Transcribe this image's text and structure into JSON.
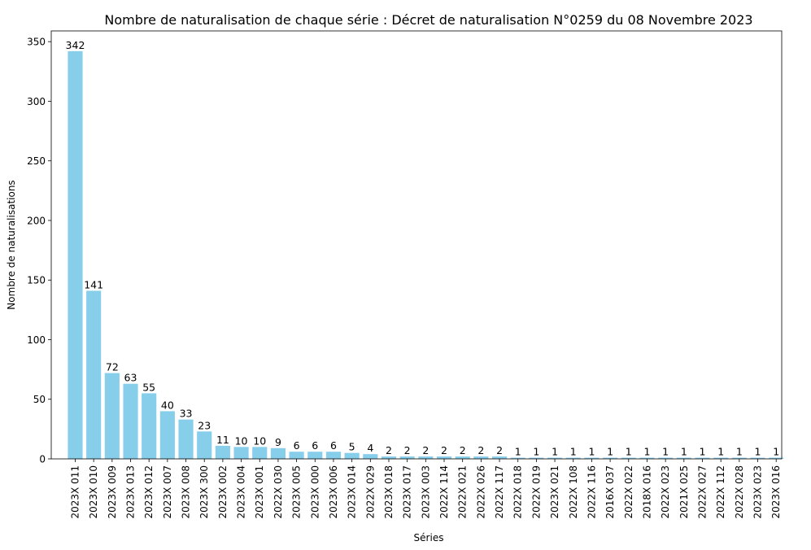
{
  "chart_data": {
    "type": "bar",
    "title": "Nombre de naturalisation de chaque série : Décret de naturalisation N°0259 du 08 Novembre 2023",
    "xlabel": "Séries",
    "ylabel": "Nombre de naturalisations",
    "ylim": [
      0,
      359
    ],
    "yticks": [
      "0",
      "50",
      "100",
      "150",
      "200",
      "250",
      "300",
      "350"
    ],
    "grid": false,
    "bar_color": "#87ceeb",
    "categories": [
      "2023X 011",
      "2023X 010",
      "2023X 009",
      "2023X 013",
      "2023X 012",
      "2023X 007",
      "2023X 008",
      "2023X 300",
      "2023X 002",
      "2023X 004",
      "2023X 001",
      "2022X 030",
      "2023X 005",
      "2023X 000",
      "2023X 006",
      "2023X 014",
      "2022X 029",
      "2023X 018",
      "2023X 017",
      "2023X 003",
      "2022X 114",
      "2022X 021",
      "2022X 026",
      "2022X 117",
      "2022X 018",
      "2022X 019",
      "2023X 021",
      "2022X 108",
      "2022X 116",
      "2016X 037",
      "2022X 022",
      "2018X 016",
      "2022X 023",
      "2021X 025",
      "2022X 027",
      "2022X 112",
      "2022X 028",
      "2023X 023",
      "2023X 016"
    ],
    "values": [
      342,
      141,
      72,
      63,
      55,
      40,
      33,
      23,
      11,
      10,
      10,
      9,
      6,
      6,
      6,
      5,
      4,
      2,
      2,
      2,
      2,
      2,
      2,
      2,
      1,
      1,
      1,
      1,
      1,
      1,
      1,
      1,
      1,
      1,
      1,
      1,
      1,
      1,
      1
    ],
    "labels": [
      "342",
      "141",
      "72",
      "63",
      "55",
      "40",
      "33",
      "23",
      "11",
      "10",
      "10",
      "9",
      "6",
      "6",
      "6",
      "5",
      "4",
      "2",
      "2",
      "2",
      "2",
      "2",
      "2",
      "2",
      "1",
      "1",
      "1",
      "1",
      "1",
      "1",
      "1",
      "1",
      "1",
      "1",
      "1",
      "1",
      "1",
      "1",
      "1"
    ]
  }
}
